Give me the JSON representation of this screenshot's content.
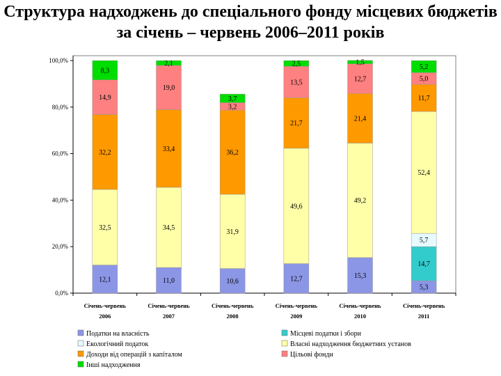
{
  "title": {
    "line1": "Структура надходжень до спеціального фонду місцевих бюджетів",
    "line2": "за січень – червень 2006–2011 років"
  },
  "chart_data": {
    "type": "bar",
    "stacked": true,
    "title": "Структура надходжень до спеціального фонду місцевих бюджетів за січень – червень 2006–2011 років",
    "categories": [
      [
        "Січень-червень",
        "2006"
      ],
      [
        "Січень-червень",
        "2007"
      ],
      [
        "Січень-червень",
        "2008"
      ],
      [
        "Січень-червень",
        "2009"
      ],
      [
        "Січень-червень",
        "2010"
      ],
      [
        "Січень-червень",
        "2011"
      ]
    ],
    "ylim": [
      0,
      100
    ],
    "yticks": [
      "0,0%",
      "20,0%",
      "40,0%",
      "60,0%",
      "80,0%",
      "100,0%"
    ],
    "legend_position": "bottom",
    "series": [
      {
        "name": "Податки на власність",
        "color": "#8c96e6",
        "values": [
          12.1,
          11.0,
          10.6,
          12.7,
          15.3,
          5.3
        ],
        "labels": [
          "12,1",
          "11,0",
          "10,6",
          "12,7",
          "15,3",
          "5,3"
        ]
      },
      {
        "name": "Місцеві податки і збори",
        "color": "#33cccc",
        "values": [
          0,
          0,
          0,
          0,
          0,
          14.7
        ],
        "labels": [
          "",
          "",
          "",
          "",
          "",
          "14,7"
        ]
      },
      {
        "name": "Екологічний податок",
        "color": "#e6faff",
        "values": [
          0,
          0,
          0,
          0,
          0,
          5.7
        ],
        "labels": [
          "",
          "",
          "",
          "",
          "",
          "5,7"
        ]
      },
      {
        "name": "Власні надходження бюджетних установ",
        "color": "#ffffa8",
        "values": [
          32.5,
          34.5,
          31.9,
          49.6,
          49.2,
          52.4
        ],
        "labels": [
          "32,5",
          "34,5",
          "31,9",
          "49,6",
          "49,2",
          "52,4"
        ]
      },
      {
        "name": "Доходи від операцій з капіталом",
        "color": "#ff9900",
        "values": [
          32.2,
          33.4,
          36.2,
          21.7,
          21.4,
          11.7
        ],
        "labels": [
          "32,2",
          "33,4",
          "36,2",
          "21,7",
          "21,4",
          "11,7"
        ]
      },
      {
        "name": "Цільові фонди",
        "color": "#ff8080",
        "values": [
          14.9,
          19.0,
          3.2,
          13.5,
          12.7,
          5.0
        ],
        "labels": [
          "14,9",
          "19,0",
          "3,2",
          "13,5",
          "12,7",
          "5,0"
        ]
      },
      {
        "name": "Інші надходження",
        "color": "#00dd00",
        "values": [
          8.3,
          2.1,
          3.7,
          2.5,
          1.5,
          5.2
        ],
        "labels": [
          "8,3",
          "2,1",
          "3,7",
          "2,5",
          "1,5",
          "5,2"
        ]
      }
    ]
  }
}
